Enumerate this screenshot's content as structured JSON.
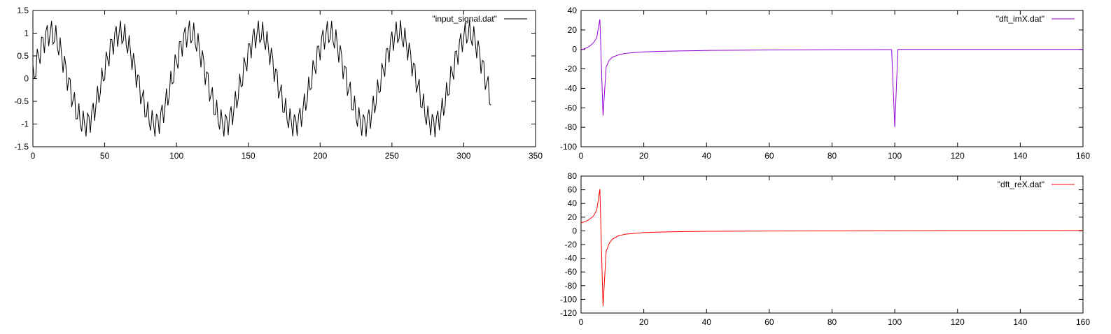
{
  "chart_data": [
    {
      "id": "input",
      "type": "line",
      "title": "",
      "xlabel": "",
      "ylabel": "",
      "xlim": [
        0,
        350
      ],
      "ylim": [
        -1.5,
        1.5
      ],
      "xticks": [
        0,
        50,
        100,
        150,
        200,
        250,
        300,
        350
      ],
      "yticks": [
        -1.5,
        -1,
        -0.5,
        0,
        0.5,
        1,
        1.5
      ],
      "ytick_labels": [
        "-1.5",
        "-1",
        "-0.5",
        "0",
        "0.5",
        "1",
        "1.5"
      ],
      "grid": false,
      "legend_position": "top-right",
      "series": [
        {
          "name": "\"input_signal.dat\"",
          "color": "#000000",
          "generator": {
            "n": 320,
            "components": [
              {
                "amplitude": 1.0,
                "period": 48.5,
                "phase_deg": 0
              },
              {
                "amplitude": 0.3,
                "period": 3.2,
                "phase_deg": 90
              }
            ]
          }
        }
      ]
    },
    {
      "id": "imx",
      "type": "line",
      "title": "",
      "xlabel": "",
      "ylabel": "",
      "xlim": [
        0,
        160
      ],
      "ylim": [
        -100,
        40
      ],
      "xticks": [
        0,
        20,
        40,
        60,
        80,
        100,
        120,
        140,
        160
      ],
      "yticks": [
        -100,
        -80,
        -60,
        -40,
        -20,
        0,
        20,
        40
      ],
      "grid": false,
      "legend_position": "top-right",
      "series": [
        {
          "name": "\"dft_imX.dat\"",
          "color": "#9400d3",
          "x": [
            0,
            1,
            2,
            3,
            4,
            5,
            6,
            7,
            8,
            9,
            10,
            12,
            14,
            16,
            20,
            25,
            30,
            40,
            50,
            60,
            80,
            98,
            99,
            100,
            101,
            102,
            110,
            130,
            160
          ],
          "y": [
            -0.5,
            0.5,
            2,
            4,
            7,
            12,
            31,
            -68,
            -18,
            -11,
            -8,
            -5.5,
            -4.2,
            -3.4,
            -2.5,
            -2,
            -1.6,
            -1.1,
            -0.8,
            -0.6,
            -0.3,
            -0.2,
            -0.2,
            -80,
            -0.1,
            0,
            0,
            0,
            0
          ]
        }
      ]
    },
    {
      "id": "rex",
      "type": "line",
      "title": "",
      "xlabel": "",
      "ylabel": "",
      "xlim": [
        0,
        160
      ],
      "ylim": [
        -120,
        80
      ],
      "xticks": [
        0,
        20,
        40,
        60,
        80,
        100,
        120,
        140,
        160
      ],
      "yticks": [
        -120,
        -100,
        -80,
        -60,
        -40,
        -20,
        0,
        20,
        40,
        60,
        80
      ],
      "grid": false,
      "legend_position": "top-right",
      "series": [
        {
          "name": "\"dft_reX.dat\"",
          "color": "#ff0000",
          "x": [
            0,
            1,
            2,
            3,
            4,
            5,
            6,
            7,
            8,
            9,
            10,
            12,
            14,
            16,
            20,
            25,
            30,
            40,
            60,
            80,
            100,
            120,
            160
          ],
          "y": [
            12,
            13,
            15,
            18,
            22,
            30,
            61,
            -110,
            -30,
            -18,
            -12,
            -7,
            -5,
            -4,
            -2.5,
            -1.8,
            -1.2,
            -0.6,
            -0.2,
            0,
            0.3,
            0.4,
            0.5
          ]
        }
      ]
    }
  ]
}
